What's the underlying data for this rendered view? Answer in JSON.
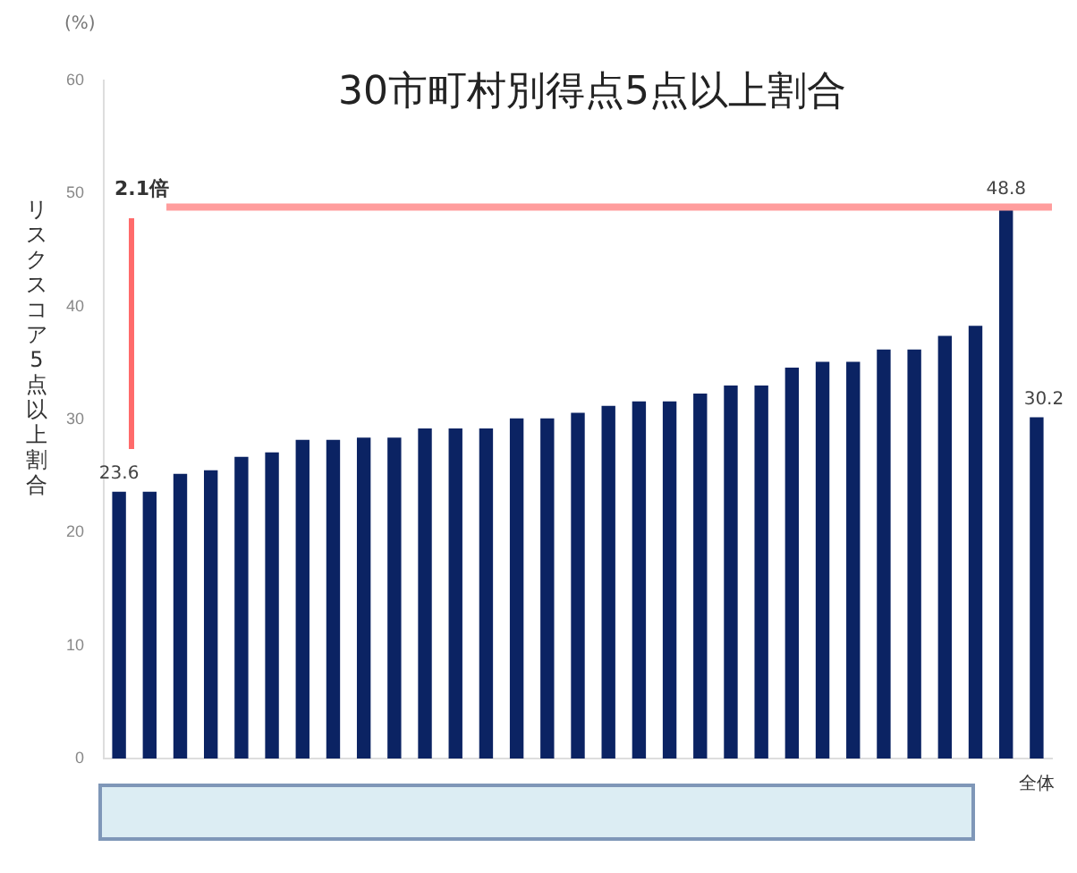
{
  "chart_data": {
    "type": "bar",
    "title": "30市町村別得点5点以上割合",
    "ylabel": "リスクスコア5点以上割合",
    "categories": [
      null,
      null,
      null,
      null,
      null,
      null,
      null,
      null,
      null,
      null,
      null,
      null,
      null,
      null,
      null,
      null,
      null,
      null,
      null,
      null,
      null,
      null,
      null,
      null,
      null,
      null,
      null,
      null,
      null,
      null,
      "全体"
    ],
    "values": [
      23.6,
      23.6,
      25.2,
      25.5,
      26.7,
      27.1,
      28.2,
      28.2,
      28.4,
      28.4,
      29.2,
      29.2,
      29.2,
      30.1,
      30.1,
      30.6,
      31.2,
      31.6,
      31.6,
      32.3,
      33.0,
      33.0,
      34.6,
      35.1,
      35.1,
      36.2,
      36.2,
      37.4,
      38.3,
      48.8,
      30.2
    ],
    "value_labels": [
      "23.6",
      null,
      null,
      null,
      null,
      null,
      null,
      null,
      null,
      null,
      null,
      null,
      null,
      null,
      null,
      null,
      null,
      null,
      null,
      null,
      null,
      null,
      null,
      null,
      null,
      null,
      null,
      null,
      null,
      "48.8",
      "30.2"
    ],
    "color": "#0b2363",
    "ylim": [
      0,
      60
    ],
    "yticks": [
      0,
      10,
      20,
      30,
      40,
      50,
      60
    ],
    "ref_lines": [
      {
        "axis": "y",
        "value": 48.8,
        "label": "2.1倍",
        "color": "#ff9d9d"
      }
    ],
    "annotations": [
      "(%)"
    ],
    "grid": false,
    "legend": false
  }
}
